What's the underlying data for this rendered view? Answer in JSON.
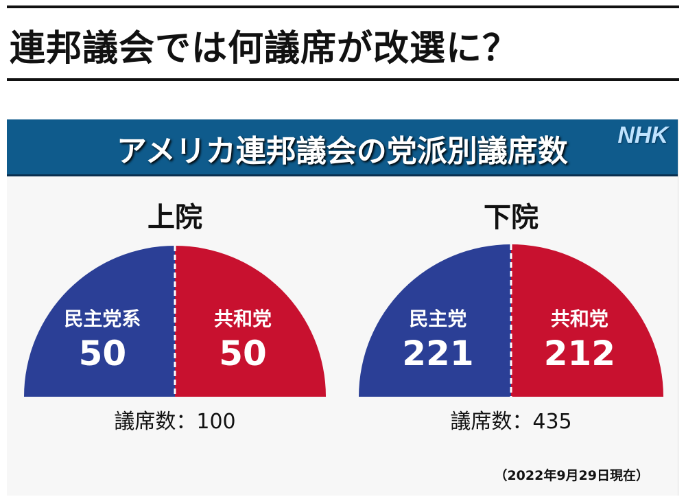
{
  "page_title": "連邦議会では何議席が改選に？",
  "chart_data": {
    "type": "semicircle",
    "title": "アメリカ連邦議会の党派別議席数",
    "logo": "NHK",
    "colors": {
      "democrat": "#2b3f96",
      "republican": "#c8112f"
    },
    "charts": [
      {
        "chamber": "上院",
        "total_label": "議席数：100",
        "parties": [
          {
            "name": "民主党系",
            "seats": 50,
            "color": "#2b3f96"
          },
          {
            "name": "共和党",
            "seats": 50,
            "color": "#c8112f"
          }
        ]
      },
      {
        "chamber": "下院",
        "total_label": "議席数：435",
        "parties": [
          {
            "name": "民主党",
            "seats": 221,
            "color": "#2b3f96"
          },
          {
            "name": "共和党",
            "seats": 212,
            "color": "#c8112f"
          }
        ]
      }
    ],
    "footnote": "（2022年9月29日現在）"
  }
}
